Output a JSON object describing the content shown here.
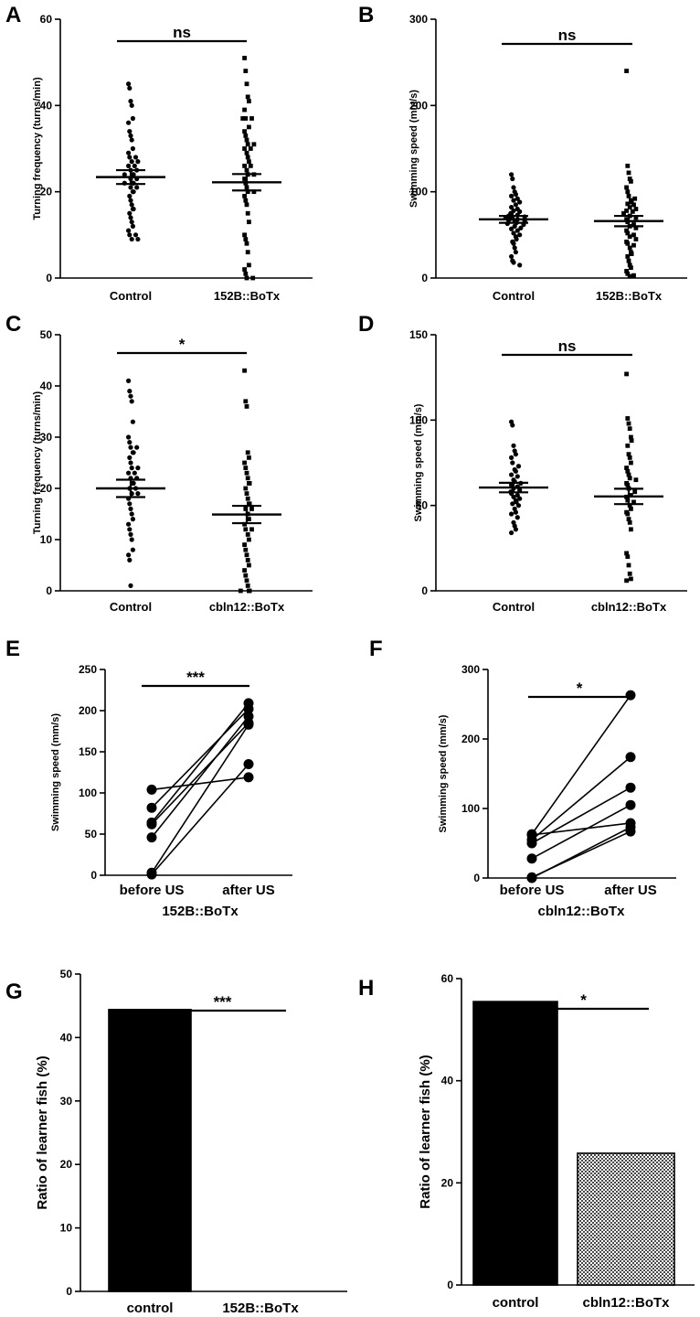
{
  "chart_data": [
    {
      "panel": "A",
      "type": "scatter",
      "ylabel": "Turning frequency (turns/min)",
      "ylim": [
        0,
        60
      ],
      "yticks": [
        0,
        20,
        40,
        60
      ],
      "categories": [
        "Control",
        "152B::BoTx"
      ],
      "significance": "ns",
      "series": [
        {
          "values": [
            45,
            44,
            41,
            40,
            37,
            36,
            34,
            33,
            32,
            30,
            29,
            28,
            28,
            27,
            27,
            26,
            26,
            25,
            25,
            24,
            24,
            24,
            23,
            23,
            22,
            22,
            22,
            21,
            21,
            20,
            20,
            19,
            18,
            17,
            16,
            16,
            15,
            14,
            13,
            12,
            11,
            10,
            10,
            9,
            9
          ],
          "mean": 23.4,
          "sem": 1.6,
          "marker": "circle"
        },
        {
          "values": [
            51,
            48,
            45,
            42,
            41,
            39,
            37,
            37,
            37,
            35,
            34,
            33,
            32,
            31,
            31,
            30,
            30,
            29,
            28,
            27,
            26,
            26,
            25,
            24,
            24,
            23,
            22,
            21,
            20,
            20,
            19,
            18,
            17,
            15,
            13,
            10,
            9,
            8,
            6,
            3,
            2,
            1,
            0,
            0
          ],
          "mean": 22.2,
          "sem": 1.9,
          "marker": "square"
        }
      ]
    },
    {
      "panel": "B",
      "type": "scatter",
      "ylabel": "Swimming speed (mm/s)",
      "ylim": [
        0,
        300
      ],
      "yticks": [
        0,
        100,
        200,
        300
      ],
      "categories": [
        "Control",
        "152B::BoTx"
      ],
      "significance": "ns",
      "series": [
        {
          "values": [
            120,
            115,
            105,
            100,
            97,
            95,
            92,
            90,
            88,
            85,
            82,
            80,
            78,
            77,
            75,
            74,
            73,
            72,
            71,
            70,
            69,
            68,
            67,
            66,
            65,
            64,
            63,
            62,
            60,
            58,
            57,
            55,
            52,
            50,
            48,
            45,
            42,
            40,
            35,
            30,
            25,
            20,
            18,
            15
          ],
          "mean": 68,
          "sem": 4,
          "marker": "circle"
        },
        {
          "values": [
            240,
            130,
            122,
            115,
            112,
            105,
            100,
            95,
            92,
            90,
            88,
            86,
            85,
            82,
            80,
            78,
            77,
            75,
            72,
            70,
            68,
            65,
            62,
            60,
            58,
            55,
            52,
            50,
            48,
            45,
            42,
            40,
            38,
            35,
            30,
            28,
            25,
            20,
            15,
            12,
            8,
            5,
            3,
            2
          ],
          "mean": 66,
          "sem": 6,
          "marker": "square"
        }
      ]
    },
    {
      "panel": "C",
      "type": "scatter",
      "ylabel": "Turning frequency (turns/min)",
      "ylim": [
        0,
        50
      ],
      "yticks": [
        0,
        10,
        20,
        30,
        40,
        50
      ],
      "categories": [
        "Control",
        "cbln12::BoTx"
      ],
      "significance": "*",
      "series": [
        {
          "values": [
            41,
            39,
            38,
            37,
            33,
            30,
            29,
            28,
            28,
            27,
            27,
            26,
            25,
            24,
            24,
            23,
            23,
            22,
            22,
            21,
            21,
            20,
            20,
            19,
            19,
            18,
            17,
            16,
            15,
            14,
            13,
            12,
            11,
            10,
            8,
            7,
            6,
            1
          ],
          "mean": 20,
          "sem": 1.7,
          "marker": "circle"
        },
        {
          "values": [
            43,
            37,
            36,
            27,
            26,
            25,
            24,
            23,
            22,
            21,
            21,
            20,
            19,
            18,
            17,
            17,
            16,
            16,
            15,
            14,
            13,
            12,
            12,
            11,
            10,
            9,
            8,
            7,
            6,
            5,
            4,
            3,
            2,
            1,
            0,
            0,
            0
          ],
          "mean": 14.9,
          "sem": 1.7,
          "marker": "square"
        }
      ]
    },
    {
      "panel": "D",
      "type": "scatter",
      "ylabel": "Swimming speed (mm/s)",
      "ylim": [
        0,
        150
      ],
      "yticks": [
        0,
        50,
        100,
        150
      ],
      "categories": [
        "Control",
        "cbln12::BoTx"
      ],
      "significance": "ns",
      "series": [
        {
          "values": [
            99,
            97,
            85,
            82,
            80,
            78,
            75,
            73,
            71,
            70,
            68,
            67,
            65,
            64,
            63,
            62,
            61,
            60,
            59,
            58,
            57,
            56,
            55,
            54,
            53,
            52,
            51,
            50,
            48,
            46,
            45,
            43,
            40,
            38,
            36,
            34
          ],
          "mean": 60.5,
          "sem": 2.8,
          "marker": "circle"
        },
        {
          "values": [
            127,
            101,
            98,
            95,
            90,
            88,
            85,
            80,
            78,
            75,
            72,
            70,
            68,
            66,
            65,
            63,
            62,
            60,
            58,
            56,
            55,
            53,
            52,
            50,
            48,
            46,
            45,
            42,
            40,
            36,
            22,
            20,
            15,
            10,
            7,
            6
          ],
          "mean": 55.3,
          "sem": 4.5,
          "marker": "square"
        }
      ]
    },
    {
      "panel": "E",
      "type": "line",
      "ylabel": "Swimming speed (mm/s)",
      "xlabel": "152B::BoTx",
      "ylim": [
        0,
        250
      ],
      "yticks": [
        0,
        50,
        100,
        150,
        200,
        250
      ],
      "categories": [
        "before US",
        "after US"
      ],
      "significance": "***",
      "pairs": [
        [
          104,
          119
        ],
        [
          82,
          202
        ],
        [
          64,
          209
        ],
        [
          46,
          193
        ],
        [
          62,
          185
        ],
        [
          3,
          183
        ],
        [
          1,
          135
        ]
      ]
    },
    {
      "panel": "F",
      "type": "line",
      "ylabel": "Swimming speed (mm/s)",
      "xlabel": "cbln12::BoTx",
      "ylim": [
        0,
        300
      ],
      "yticks": [
        0,
        100,
        200,
        300
      ],
      "categories": [
        "before US",
        "after US"
      ],
      "significance": "*",
      "pairs": [
        [
          63,
          263
        ],
        [
          55,
          174
        ],
        [
          50,
          130
        ],
        [
          28,
          105
        ],
        [
          62,
          79
        ],
        [
          0,
          73
        ],
        [
          1,
          67
        ]
      ]
    },
    {
      "panel": "G",
      "type": "bar",
      "ylabel": "Ratio of learner fish (%)",
      "ylim": [
        0,
        50
      ],
      "yticks": [
        0,
        10,
        20,
        30,
        40,
        50
      ],
      "categories": [
        "control",
        "152B::BoTx"
      ],
      "values": [
        44.4,
        0
      ],
      "significance": "***",
      "colors": [
        "#000000",
        "#b0b0b0"
      ]
    },
    {
      "panel": "H",
      "type": "bar",
      "ylabel": "Ratio of learner fish (%)",
      "ylim": [
        0,
        60
      ],
      "yticks": [
        0,
        20,
        40,
        60
      ],
      "categories": [
        "control",
        "cbln12::BoTx"
      ],
      "values": [
        55.5,
        25.8
      ],
      "significance": "*",
      "colors": [
        "#000000",
        "#b0b0b0"
      ]
    }
  ]
}
